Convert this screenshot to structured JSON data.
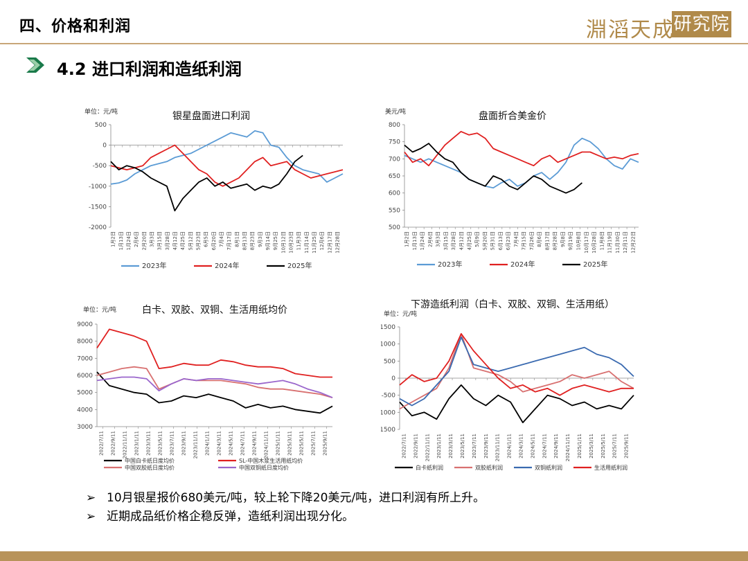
{
  "header": {
    "title": "四、价格和利润",
    "logo_text": "淵滔天成",
    "logo_box": "研究院"
  },
  "section": {
    "title": "4.2 进口利润和造纸利润"
  },
  "colors": {
    "gold": "#b8935a",
    "blue": "#5b9bd5",
    "red": "#e02020",
    "black": "#000000",
    "pink": "#d87070",
    "purple": "#9a66cc",
    "navy": "#3a6ab0"
  },
  "bullets": [
    "10月银星报价680美元/吨，较上轮下降20美元/吨，进口利润有所上升。",
    "近期成品纸价格企稳反弹，造纸利润出现分化。"
  ],
  "bullet_icon": "arrow-bullet-icon",
  "chart_data": [
    {
      "id": "import-profit",
      "type": "line",
      "title": "银星盘面进口利润",
      "unit": "单位：元/吨",
      "ylim": [
        -2000,
        500
      ],
      "yticks": [
        500,
        0,
        -500,
        -1000,
        -1500,
        -2000
      ],
      "ytick_labels": [
        "500",
        "0",
        "-500",
        "-1000",
        "-1500",
        "-2000"
      ],
      "x_ticks": [
        "1月2日",
        "1月13日",
        "1月24日",
        "2月6日",
        "2月20日",
        "3月3日",
        "3月15日",
        "3月28日",
        "4月12日",
        "4月25日",
        "5月12日",
        "5月23日",
        "6月5日",
        "6月20日",
        "7月4日",
        "7月17日",
        "8月1日",
        "8月13日",
        "8月23日",
        "9月3日",
        "9月14日",
        "9月25日",
        "10月12日",
        "10月23日",
        "11月3日",
        "11月14日",
        "11月25日",
        "12月6日",
        "12月17日",
        "12月28日"
      ],
      "series": [
        {
          "name": "2023年",
          "color": "#5b9bd5",
          "values": [
            -950,
            -920,
            -850,
            -700,
            -600,
            -500,
            -450,
            -400,
            -300,
            -250,
            -200,
            -100,
            0,
            100,
            200,
            300,
            250,
            200,
            350,
            300,
            0,
            -50,
            -300,
            -500,
            -600,
            -650,
            -700,
            -900,
            -800,
            -700
          ]
        },
        {
          "name": "2024年",
          "color": "#e02020",
          "values": [
            -500,
            -550,
            -600,
            -550,
            -500,
            -300,
            -200,
            -100,
            0,
            -200,
            -400,
            -600,
            -700,
            -900,
            -1000,
            -900,
            -800,
            -600,
            -400,
            -300,
            -500,
            -450,
            -400,
            -600,
            -700,
            -800,
            -750,
            -700,
            -650,
            -600
          ]
        },
        {
          "name": "2025年",
          "color": "#000000",
          "values": [
            -400,
            -600,
            -500,
            -550,
            -650,
            -800,
            -900,
            -1000,
            -1600,
            -1300,
            -1100,
            -900,
            -800,
            -1000,
            -900,
            -1050,
            -1000,
            -950,
            -1100,
            -1000,
            -1050,
            -950,
            -700,
            -400,
            -250,
            null,
            null,
            null,
            null,
            null
          ]
        }
      ]
    },
    {
      "id": "usd-price",
      "type": "line",
      "title": "盘面折合美金价",
      "unit": "美元/吨",
      "ylim": [
        500,
        800
      ],
      "yticks": [
        800,
        750,
        700,
        650,
        600,
        550,
        500
      ],
      "ytick_labels": [
        "800",
        "750",
        "700",
        "650",
        "600",
        "550",
        "500"
      ],
      "x_ticks": [
        "1月2日",
        "1月13日",
        "1月24日",
        "2月6日",
        "3月3日",
        "3月15日",
        "3月28日",
        "4月12日",
        "4月25日",
        "5月9日",
        "5月20日",
        "5月31日",
        "6月13日",
        "6月23日",
        "7月4日",
        "7月15日",
        "7月26日",
        "8月6日",
        "8月17日",
        "8月28日",
        "9月8日",
        "9月19日",
        "10月8日",
        "10月17日",
        "10月28日",
        "11月8日",
        "11月19日",
        "11月30日",
        "12月11日",
        "12月22日"
      ],
      "series": [
        {
          "name": "2023年",
          "color": "#5b9bd5",
          "values": [
            710,
            700,
            690,
            700,
            690,
            680,
            670,
            660,
            640,
            630,
            620,
            615,
            630,
            640,
            620,
            630,
            650,
            660,
            640,
            660,
            690,
            740,
            760,
            750,
            730,
            700,
            680,
            670,
            700,
            690
          ]
        },
        {
          "name": "2024年",
          "color": "#e02020",
          "values": [
            720,
            690,
            700,
            680,
            710,
            740,
            760,
            780,
            770,
            775,
            760,
            730,
            720,
            710,
            700,
            690,
            680,
            700,
            710,
            690,
            700,
            710,
            720,
            720,
            710,
            700,
            705,
            700,
            710,
            715
          ]
        },
        {
          "name": "2025年",
          "color": "#000000",
          "values": [
            740,
            720,
            730,
            745,
            720,
            700,
            690,
            660,
            640,
            630,
            620,
            650,
            640,
            620,
            610,
            630,
            650,
            640,
            620,
            610,
            600,
            610,
            630,
            null,
            null,
            null,
            null,
            null,
            null,
            null
          ]
        }
      ]
    },
    {
      "id": "paper-prices",
      "type": "line",
      "title": "白卡、双胶、双铜、生活用纸均价",
      "unit": "单位：元/吨",
      "ylim": [
        3000,
        9000
      ],
      "yticks": [
        9000,
        8000,
        7000,
        6000,
        5000,
        4000,
        3000
      ],
      "ytick_labels": [
        "9000",
        "8000",
        "7000",
        "6000",
        "5000",
        "4000",
        "3000"
      ],
      "x_ticks": [
        "2022/7/11",
        "2022/9/11",
        "2022/11/11",
        "2023/1/11",
        "2023/3/11",
        "2023/5/11",
        "2023/7/11",
        "2023/9/11",
        "2023/11/11",
        "2024/1/11",
        "2024/3/11",
        "2024/5/11",
        "2024/7/11",
        "2024/9/11",
        "2024/11/11",
        "2025/1/11",
        "2025/3/11",
        "2025/5/11",
        "2025/7/11",
        "2025/9/11"
      ],
      "series": [
        {
          "name": "中国白卡纸日度均价",
          "color": "#000000",
          "values": [
            6200,
            5400,
            5200,
            5000,
            4900,
            4400,
            4500,
            4800,
            4700,
            4900,
            4700,
            4500,
            4100,
            4300,
            4100,
            4200,
            4000,
            3900,
            3800,
            4200
          ]
        },
        {
          "name": "SL-中国木浆生活用纸均价",
          "color": "#e02020",
          "values": [
            7600,
            8700,
            8500,
            8300,
            8000,
            6400,
            6500,
            6700,
            6600,
            6600,
            6900,
            6800,
            6600,
            6500,
            6500,
            6400,
            6100,
            6000,
            5900,
            5900
          ]
        },
        {
          "name": "中国双胶纸日度均价",
          "color": "#d87070",
          "values": [
            6000,
            6200,
            6400,
            6500,
            6400,
            5200,
            5500,
            5800,
            5700,
            5700,
            5700,
            5600,
            5500,
            5300,
            5200,
            5200,
            5100,
            5000,
            4900,
            4700
          ]
        },
        {
          "name": "中国双铜纸日度均价",
          "color": "#9a66cc",
          "values": [
            5700,
            5800,
            5900,
            5900,
            5800,
            5100,
            5500,
            5800,
            5700,
            5800,
            5800,
            5700,
            5600,
            5500,
            5600,
            5700,
            5500,
            5200,
            5000,
            4700
          ]
        }
      ]
    },
    {
      "id": "paper-profit",
      "type": "line",
      "title": "下游造纸利润（白卡、双胶、双铜、生活用纸）",
      "unit": "单位：元/吨",
      "ylim": [
        -1500,
        1500
      ],
      "yticks": [
        1500,
        1000,
        500,
        0,
        -500,
        -1000,
        -1500
      ],
      "ytick_labels": [
        "1500",
        "1000",
        "500",
        "0",
        "-500",
        "-1000",
        "-1500"
      ],
      "x_ticks": [
        "2022/7/11",
        "2022/9/11",
        "2022/11/11",
        "2023/1/11",
        "2023/3/11",
        "2023/5/11",
        "2023/7/11",
        "2023/9/11",
        "2023/11/11",
        "2024/1/11",
        "2024/3/11",
        "2024/5/11",
        "2024/7/11",
        "2024/9/11",
        "2024/11/11",
        "2025/1/11",
        "2025/3/11",
        "2025/5/11",
        "2025/7/11",
        "2025/9/11"
      ],
      "series": [
        {
          "name": "白卡纸利润",
          "color": "#000000",
          "values": [
            -700,
            -1100,
            -1000,
            -1200,
            -600,
            -200,
            -600,
            -800,
            -500,
            -700,
            -1300,
            -900,
            -500,
            -600,
            -800,
            -700,
            -900,
            -800,
            -900,
            -500
          ]
        },
        {
          "name": "双胶纸利润",
          "color": "#d87070",
          "values": [
            -900,
            -700,
            -500,
            -300,
            300,
            1300,
            300,
            200,
            100,
            -100,
            -400,
            -300,
            -200,
            -100,
            100,
            0,
            100,
            200,
            -100,
            -300
          ]
        },
        {
          "name": "双铜纸利润",
          "color": "#3a6ab0",
          "values": [
            -600,
            -800,
            -600,
            -200,
            200,
            1200,
            400,
            300,
            200,
            300,
            400,
            500,
            600,
            700,
            800,
            900,
            700,
            600,
            400,
            50
          ]
        },
        {
          "name": "生活用纸利润",
          "color": "#e02020",
          "values": [
            -200,
            100,
            -100,
            0,
            500,
            1300,
            800,
            400,
            0,
            -300,
            -200,
            -400,
            -300,
            -500,
            -300,
            -200,
            -300,
            -400,
            -300,
            -300
          ]
        }
      ]
    }
  ]
}
